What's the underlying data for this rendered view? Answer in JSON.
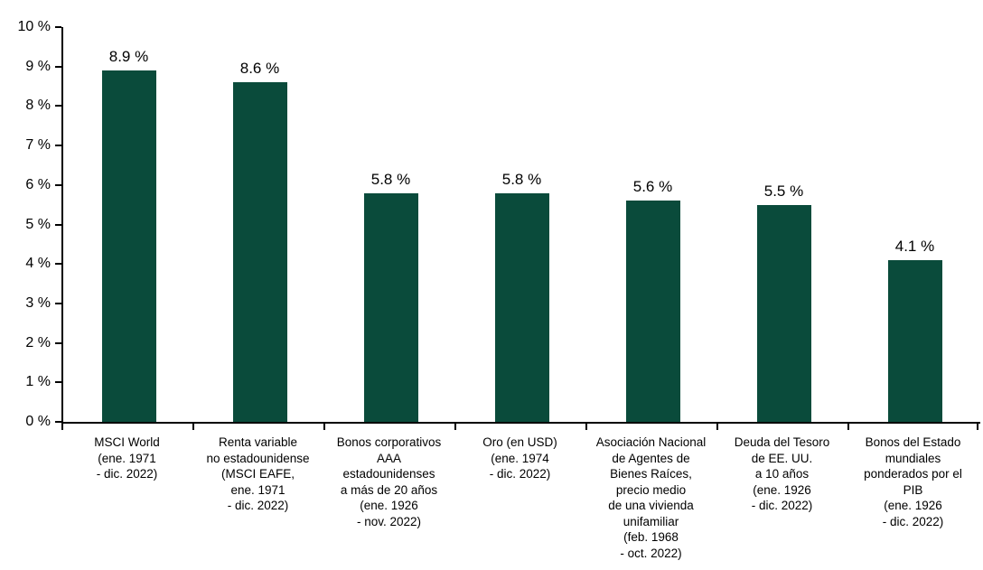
{
  "chart_data": {
    "type": "bar",
    "title": "",
    "xlabel": "",
    "ylabel": "",
    "categories": [
      "MSCI World\n(ene. 1971\n- dic. 2022)",
      "Renta variable\nno estadounidense\n(MSCI EAFE,\nene. 1971\n- dic. 2022)",
      "Bonos corporativos\nAAA\nestadounidenses\na más de 20 años\n(ene. 1926\n- nov. 2022)",
      "Oro (en USD)\n(ene. 1974\n- dic. 2022)",
      "Asociación Nacional\nde Agentes de\nBienes Raíces,\nprecio medio\nde una vivienda\nunifamiliar\n(feb. 1968\n- oct. 2022)",
      "Deuda del Tesoro\nde EE. UU.\na 10 años\n(ene. 1926\n- dic. 2022)",
      "Bonos del Estado\nmundiales\nponderados por el\nPIB\n(ene. 1926\n- dic. 2022)"
    ],
    "values": [
      8.9,
      8.6,
      5.8,
      5.8,
      5.6,
      5.5,
      4.1
    ],
    "value_labels": [
      "8.9 %",
      "8.6 %",
      "5.8 %",
      "5.8 %",
      "5.6 %",
      "5.5 %",
      "4.1 %"
    ],
    "ylim": [
      0,
      10
    ],
    "ytick_step": 1,
    "ytick_labels": [
      "0 %",
      "1 %",
      "2 %",
      "3 %",
      "4 %",
      "5 %",
      "6 %",
      "7 %",
      "8 %",
      "9 %",
      "10 %"
    ],
    "grid": false,
    "legend": null,
    "bar_color": "#0A4B3B",
    "axis_color": "#000000",
    "text_color": "#000000"
  }
}
